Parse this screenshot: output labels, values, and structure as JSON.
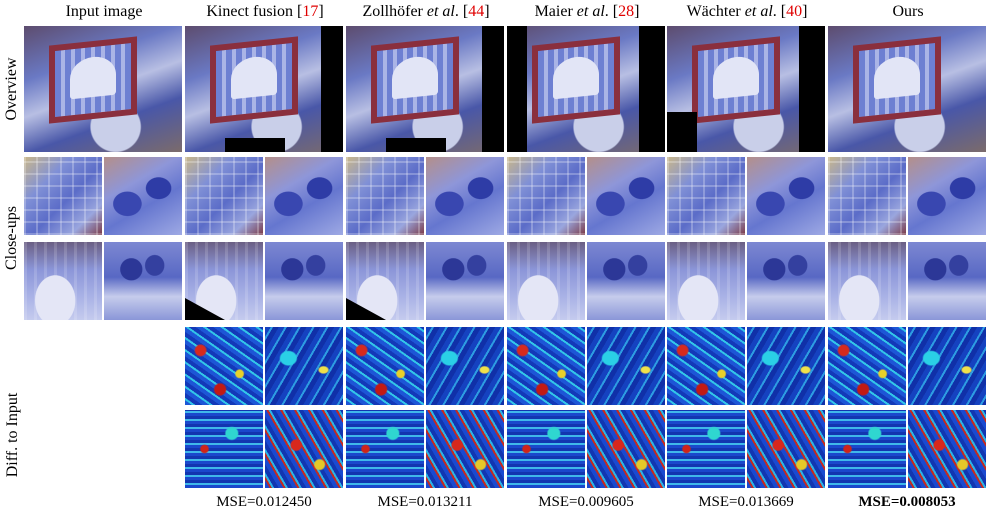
{
  "columns": {
    "input": {
      "label": "Input image"
    },
    "kinect": {
      "label": "Kinect fusion [",
      "cite": "17",
      "close": "]"
    },
    "zollhofer": {
      "label": "Zollhöfer ",
      "etal": "et al",
      "dot": ". [",
      "cite": "44",
      "close": "]"
    },
    "maier": {
      "label": "Maier ",
      "etal": "et al",
      "dot": ". [",
      "cite": "28",
      "close": "]"
    },
    "wachter": {
      "label": "Wächter ",
      "etal": "et al",
      "dot": ". [",
      "cite": "40",
      "close": "]"
    },
    "ours": {
      "label": "Ours"
    }
  },
  "rows": {
    "overview": "Overview",
    "closeups": "Close-ups",
    "diff": "Diff. to Input"
  },
  "mse": {
    "kinect": "MSE=0.012450",
    "zollhofer": "MSE=0.013211",
    "maier": "MSE=0.009605",
    "wachter": "MSE=0.013669",
    "ours": "MSE=0.008053"
  },
  "colors": {
    "citation": "#e00000"
  }
}
